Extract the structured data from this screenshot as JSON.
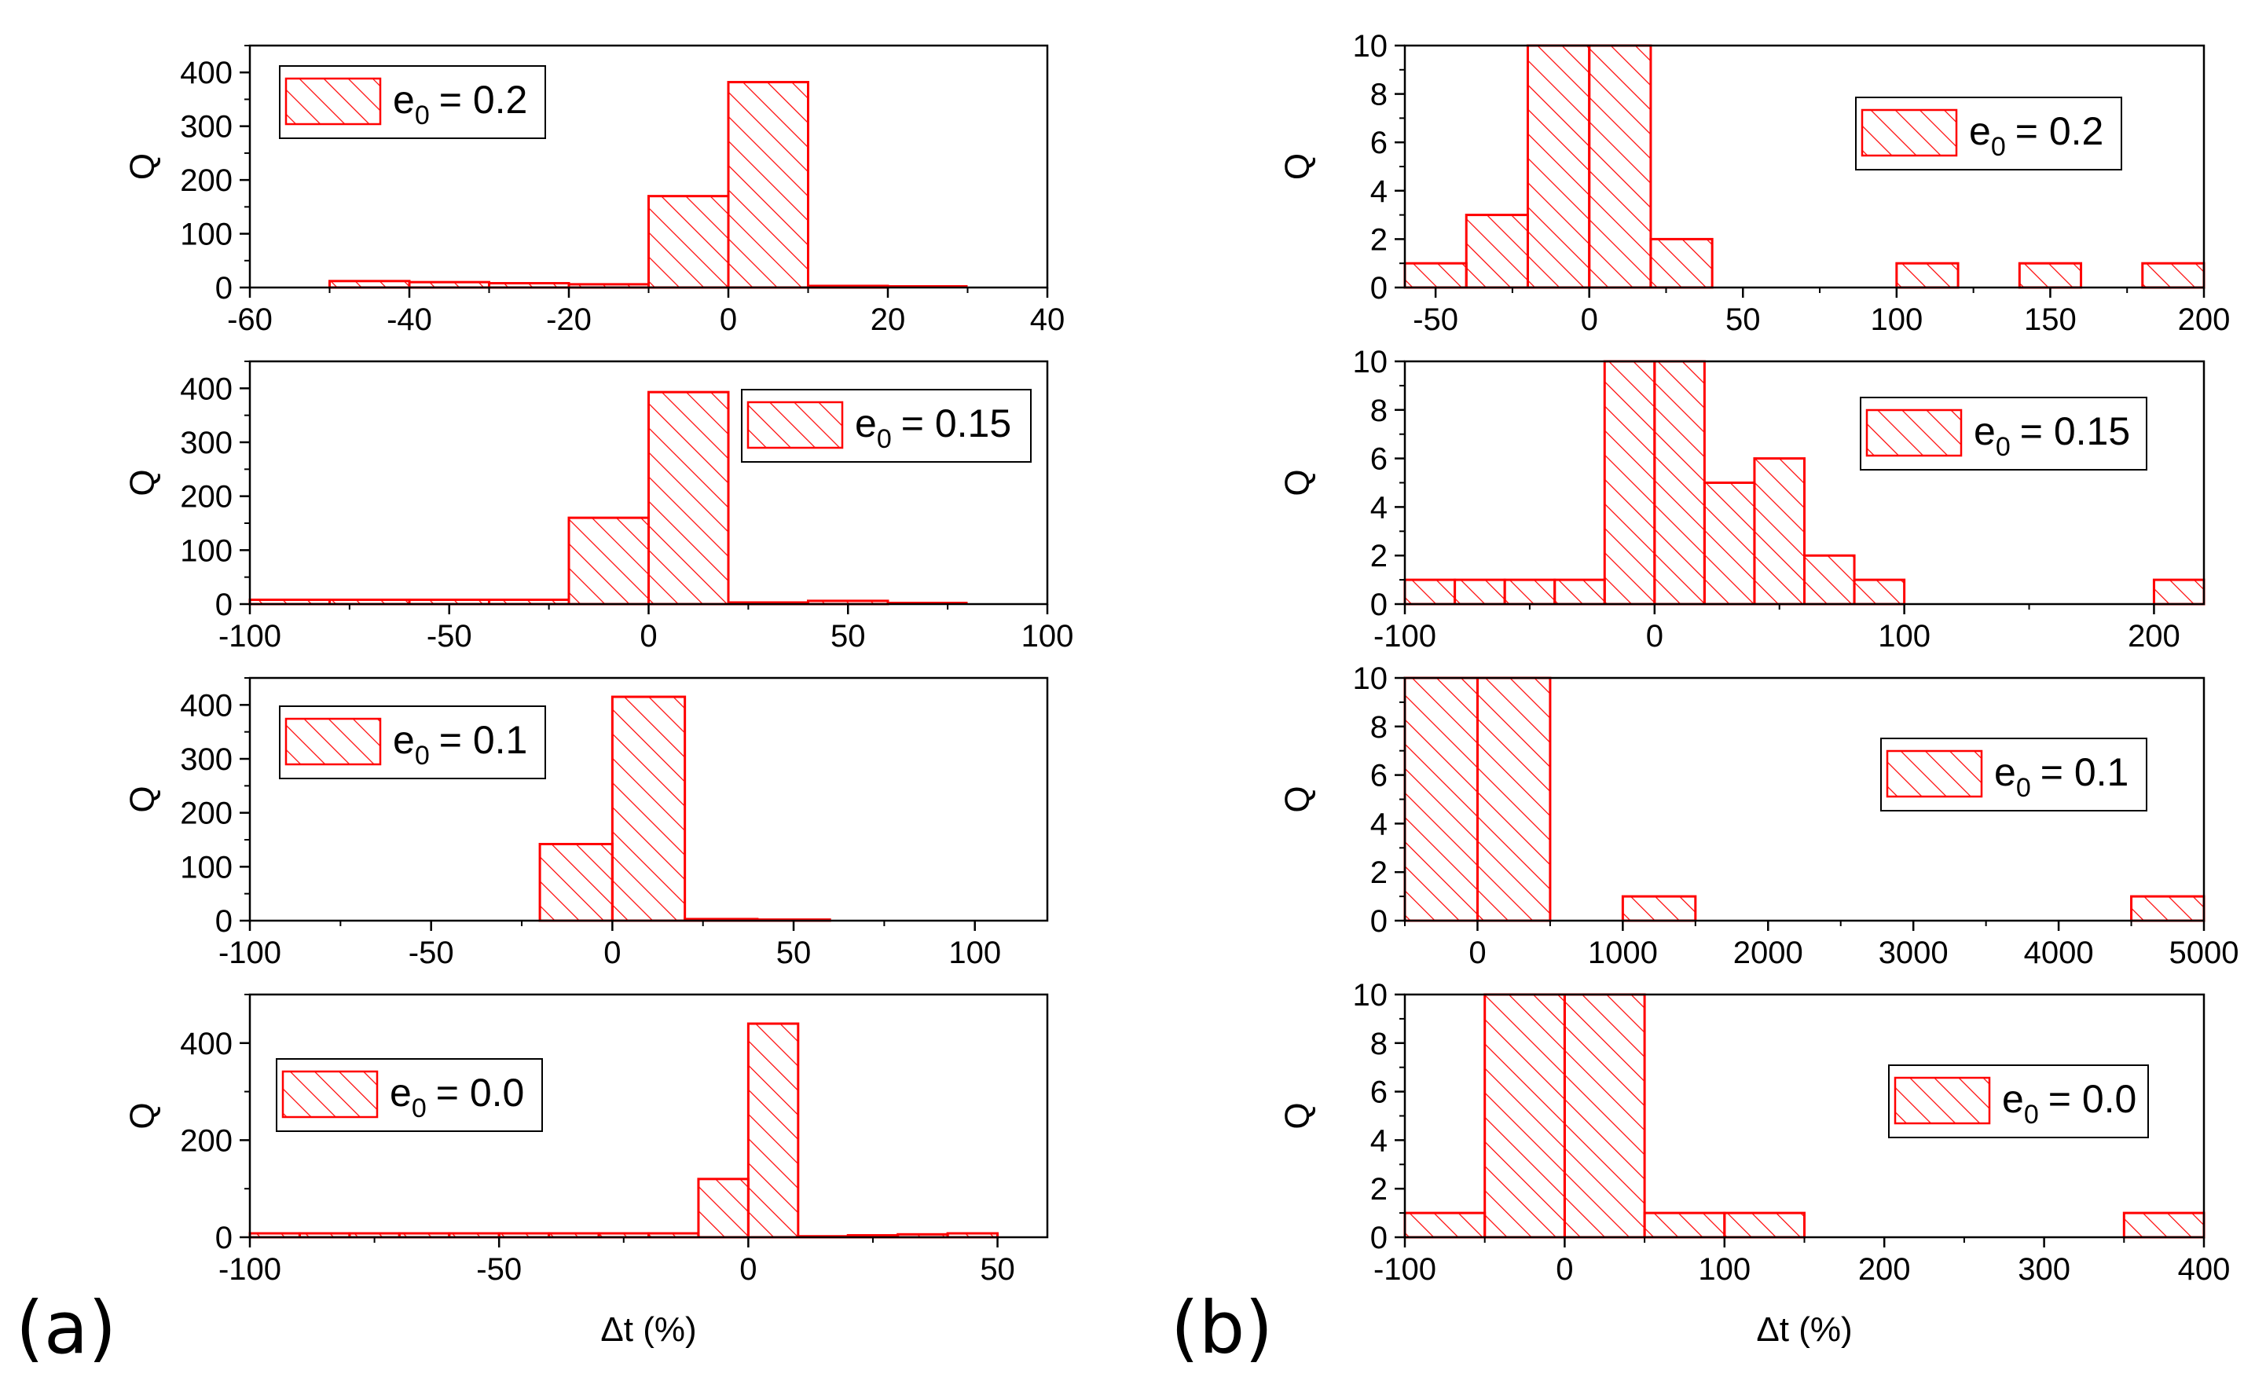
{
  "panel_labels": [
    "(a)",
    "(b)"
  ],
  "colors": {
    "bar": "#ff0000",
    "axis": "#000000",
    "background": "#ffffff"
  },
  "chart_data": [
    {
      "type": "bar",
      "panel": "a",
      "title": "",
      "xlabel": "",
      "ylabel": "Q",
      "xlim": [
        -60,
        40
      ],
      "ylim": [
        0,
        450
      ],
      "xticks": [
        -60,
        -40,
        -20,
        0,
        20,
        40
      ],
      "yticks": [
        0,
        100,
        200,
        300,
        400
      ],
      "legend": {
        "entry_base": "e",
        "entry_sub": "0",
        "entry_value": "= 0.2",
        "position": "top-left"
      },
      "bins": [
        {
          "x0": -50,
          "x1": -40,
          "value": 12
        },
        {
          "x0": -40,
          "x1": -30,
          "value": 10
        },
        {
          "x0": -30,
          "x1": -20,
          "value": 8
        },
        {
          "x0": -20,
          "x1": -10,
          "value": 6
        },
        {
          "x0": -10,
          "x1": 0,
          "value": 170
        },
        {
          "x0": 0,
          "x1": 10,
          "value": 382
        },
        {
          "x0": 10,
          "x1": 20,
          "value": 3
        },
        {
          "x0": 20,
          "x1": 30,
          "value": 1
        }
      ]
    },
    {
      "type": "bar",
      "panel": "a",
      "title": "",
      "xlabel": "",
      "ylabel": "Q",
      "xlim": [
        -100,
        100
      ],
      "ylim": [
        0,
        450
      ],
      "xticks": [
        -100,
        -50,
        0,
        50,
        100
      ],
      "yticks": [
        0,
        100,
        200,
        300,
        400
      ],
      "legend": {
        "entry_base": "e",
        "entry_sub": "0",
        "entry_value": "= 0.15",
        "position": "top-right"
      },
      "bins": [
        {
          "x0": -100,
          "x1": -80,
          "value": 8
        },
        {
          "x0": -80,
          "x1": -60,
          "value": 8
        },
        {
          "x0": -60,
          "x1": -40,
          "value": 8
        },
        {
          "x0": -40,
          "x1": -20,
          "value": 8
        },
        {
          "x0": -20,
          "x1": 0,
          "value": 160
        },
        {
          "x0": 0,
          "x1": 20,
          "value": 393
        },
        {
          "x0": 20,
          "x1": 40,
          "value": 3
        },
        {
          "x0": 40,
          "x1": 60,
          "value": 6
        },
        {
          "x0": 60,
          "x1": 80,
          "value": 1
        }
      ]
    },
    {
      "type": "bar",
      "panel": "a",
      "title": "",
      "xlabel": "",
      "ylabel": "Q",
      "xlim": [
        -100,
        120
      ],
      "ylim": [
        0,
        450
      ],
      "xticks": [
        -100,
        -50,
        0,
        50,
        100
      ],
      "yticks": [
        0,
        100,
        200,
        300,
        400
      ],
      "legend": {
        "entry_base": "e",
        "entry_sub": "0",
        "entry_value": "= 0.1",
        "position": "top-left"
      },
      "bins": [
        {
          "x0": -20,
          "x1": 0,
          "value": 142
        },
        {
          "x0": 0,
          "x1": 20,
          "value": 415
        },
        {
          "x0": 20,
          "x1": 40,
          "value": 3
        },
        {
          "x0": 40,
          "x1": 60,
          "value": 2
        }
      ]
    },
    {
      "type": "bar",
      "panel": "a",
      "title": "",
      "xlabel": "Δt (%)",
      "ylabel": "Q",
      "xlim": [
        -100,
        60
      ],
      "ylim": [
        0,
        500
      ],
      "xticks": [
        -100,
        -50,
        0,
        50
      ],
      "yticks": [
        0,
        200,
        400
      ],
      "legend": {
        "entry_base": "e",
        "entry_sub": "0",
        "entry_value": "= 0.0",
        "position": "top-left"
      },
      "bins": [
        {
          "x0": -100,
          "x1": -90,
          "value": 8
        },
        {
          "x0": -90,
          "x1": -80,
          "value": 8
        },
        {
          "x0": -80,
          "x1": -70,
          "value": 8
        },
        {
          "x0": -70,
          "x1": -60,
          "value": 8
        },
        {
          "x0": -60,
          "x1": -50,
          "value": 8
        },
        {
          "x0": -50,
          "x1": -40,
          "value": 8
        },
        {
          "x0": -40,
          "x1": -30,
          "value": 8
        },
        {
          "x0": -30,
          "x1": -20,
          "value": 8
        },
        {
          "x0": -20,
          "x1": -10,
          "value": 8
        },
        {
          "x0": -10,
          "x1": 0,
          "value": 120
        },
        {
          "x0": 0,
          "x1": 10,
          "value": 440
        },
        {
          "x0": 10,
          "x1": 20,
          "value": 2
        },
        {
          "x0": 20,
          "x1": 30,
          "value": 4
        },
        {
          "x0": 30,
          "x1": 40,
          "value": 6
        },
        {
          "x0": 40,
          "x1": 50,
          "value": 8
        }
      ]
    },
    {
      "type": "bar",
      "panel": "b",
      "title": "",
      "xlabel": "",
      "ylabel": "Q",
      "xlim": [
        -60,
        200
      ],
      "ylim": [
        0,
        10
      ],
      "xticks": [
        -50,
        0,
        50,
        100,
        150,
        200
      ],
      "yticks": [
        0,
        2,
        4,
        6,
        8,
        10
      ],
      "legend": {
        "entry_base": "e",
        "entry_sub": "0",
        "entry_value": "= 0.2",
        "position": "top-right"
      },
      "bins": [
        {
          "x0": -60,
          "x1": -40,
          "value": 1
        },
        {
          "x0": -40,
          "x1": -20,
          "value": 3
        },
        {
          "x0": -20,
          "x1": 0,
          "value": 10
        },
        {
          "x0": 0,
          "x1": 20,
          "value": 10
        },
        {
          "x0": 20,
          "x1": 40,
          "value": 2
        },
        {
          "x0": 100,
          "x1": 120,
          "value": 1
        },
        {
          "x0": 140,
          "x1": 160,
          "value": 1
        },
        {
          "x0": 180,
          "x1": 200,
          "value": 1
        }
      ]
    },
    {
      "type": "bar",
      "panel": "b",
      "title": "",
      "xlabel": "",
      "ylabel": "Q",
      "xlim": [
        -100,
        220
      ],
      "ylim": [
        0,
        10
      ],
      "xticks": [
        -100,
        0,
        100,
        200
      ],
      "yticks": [
        0,
        2,
        4,
        6,
        8,
        10
      ],
      "legend": {
        "entry_base": "e",
        "entry_sub": "0",
        "entry_value": "= 0.15",
        "position": "top-right"
      },
      "bins": [
        {
          "x0": -100,
          "x1": -80,
          "value": 1
        },
        {
          "x0": -80,
          "x1": -60,
          "value": 1
        },
        {
          "x0": -60,
          "x1": -40,
          "value": 1
        },
        {
          "x0": -40,
          "x1": -20,
          "value": 1
        },
        {
          "x0": -20,
          "x1": 0,
          "value": 10
        },
        {
          "x0": 0,
          "x1": 20,
          "value": 10
        },
        {
          "x0": 20,
          "x1": 40,
          "value": 5
        },
        {
          "x0": 40,
          "x1": 60,
          "value": 6
        },
        {
          "x0": 60,
          "x1": 80,
          "value": 2
        },
        {
          "x0": 80,
          "x1": 100,
          "value": 1
        },
        {
          "x0": 200,
          "x1": 220,
          "value": 1
        }
      ]
    },
    {
      "type": "bar",
      "panel": "b",
      "title": "",
      "xlabel": "",
      "ylabel": "Q",
      "xlim": [
        -500,
        5000
      ],
      "ylim": [
        0,
        10
      ],
      "xticks": [
        0,
        1000,
        2000,
        3000,
        4000,
        5000
      ],
      "yticks": [
        0,
        2,
        4,
        6,
        8,
        10
      ],
      "legend": {
        "entry_base": "e",
        "entry_sub": "0",
        "entry_value": "= 0.1",
        "position": "right"
      },
      "bins": [
        {
          "x0": -500,
          "x1": 0,
          "value": 10
        },
        {
          "x0": 0,
          "x1": 500,
          "value": 10
        },
        {
          "x0": 1000,
          "x1": 1500,
          "value": 1
        },
        {
          "x0": 4500,
          "x1": 5000,
          "value": 1
        }
      ]
    },
    {
      "type": "bar",
      "panel": "b",
      "title": "",
      "xlabel": "Δt (%)",
      "ylabel": "Q",
      "xlim": [
        -100,
        400
      ],
      "ylim": [
        0,
        10
      ],
      "xticks": [
        -100,
        0,
        100,
        200,
        300,
        400
      ],
      "yticks": [
        0,
        2,
        4,
        6,
        8,
        10
      ],
      "legend": {
        "entry_base": "e",
        "entry_sub": "0",
        "entry_value": "= 0.0",
        "position": "right"
      },
      "bins": [
        {
          "x0": -100,
          "x1": -50,
          "value": 1
        },
        {
          "x0": -50,
          "x1": 0,
          "value": 10
        },
        {
          "x0": 0,
          "x1": 50,
          "value": 10
        },
        {
          "x0": 50,
          "x1": 100,
          "value": 1
        },
        {
          "x0": 100,
          "x1": 150,
          "value": 1
        },
        {
          "x0": 350,
          "x1": 400,
          "value": 1
        }
      ]
    }
  ]
}
